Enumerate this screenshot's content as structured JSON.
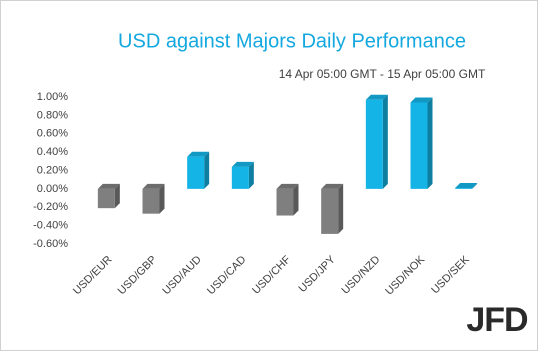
{
  "chart_data": {
    "type": "bar3d",
    "title": "USD against Majors Daily Performance",
    "subtitle": "14 Apr 05:00 GMT - 15 Apr  05:00 GMT",
    "logo": "JFD",
    "categories": [
      "USD/EUR",
      "USD/GBP",
      "USD/AUD",
      "USD/CAD",
      "USD/CHF",
      "USD/JPY",
      "USD/NZD",
      "USD/NOK",
      "USD/SEK"
    ],
    "values": [
      -0.21,
      -0.27,
      0.35,
      0.24,
      -0.29,
      -0.49,
      0.97,
      0.94,
      0.01
    ],
    "positive_color": "#14b4e6",
    "negative_color": "#7f7f7f",
    "ylim": [
      -0.6,
      1.0
    ],
    "yticks": [
      {
        "value": -0.6,
        "label": "-0.60%"
      },
      {
        "value": -0.4,
        "label": "-0.40%"
      },
      {
        "value": -0.2,
        "label": "-0.20%"
      },
      {
        "value": 0,
        "label": "0.00%"
      },
      {
        "value": 0.2,
        "label": "0.20%"
      },
      {
        "value": 0.4,
        "label": "0.40%"
      },
      {
        "value": 0.6,
        "label": "0.60%"
      },
      {
        "value": 0.8,
        "label": "0.80%"
      },
      {
        "value": 1.0,
        "label": "1.00%"
      }
    ],
    "grid": false
  }
}
